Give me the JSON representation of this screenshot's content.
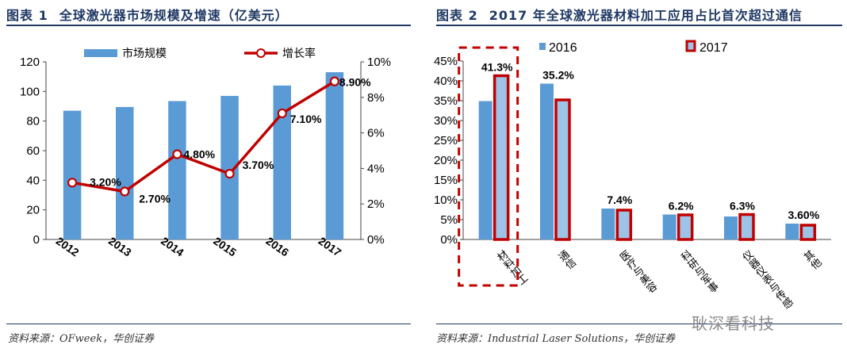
{
  "left": {
    "title_label": "图表 1",
    "title_text": "全球激光器市场规模及增速（亿美元）",
    "source": "资料来源：OFweek，华创证券"
  },
  "right": {
    "title_label": "图表 2",
    "title_text": "2017 年全球激光器材料加工应用占比首次超过通信",
    "source": "资料来源：Industrial Laser Solutions，华创证券"
  },
  "watermark": "耿深看科技",
  "chart_data": [
    {
      "type": "bar",
      "title": "全球激光器市场规模及增速（亿美元）",
      "categories": [
        "2012",
        "2013",
        "2014",
        "2015",
        "2016",
        "2017"
      ],
      "series": [
        {
          "name": "市场规模",
          "type": "bar",
          "axis": "left",
          "values": [
            87,
            89.5,
            93.5,
            97,
            104,
            113
          ],
          "color": "#5b9bd5"
        },
        {
          "name": "增长率",
          "type": "line",
          "axis": "right",
          "values": [
            3.2,
            2.7,
            4.8,
            3.7,
            7.1,
            8.9
          ],
          "labels": [
            "3.20%",
            "2.70%",
            "4.80%",
            "3.70%",
            "7.10%",
            "8.90%"
          ],
          "color": "#c00000"
        }
      ],
      "yleft": {
        "range": [
          0,
          120
        ],
        "ticks": [
          "0",
          "20",
          "40",
          "60",
          "80",
          "100",
          "120"
        ]
      },
      "yright": {
        "range": [
          0,
          10
        ],
        "ticks": [
          "0%",
          "2%",
          "4%",
          "6%",
          "8%",
          "10%"
        ]
      },
      "legend": "top"
    },
    {
      "type": "bar",
      "title": "2017 年全球激光器材料加工应用占比首次超过通信",
      "categories": [
        "材料加工",
        "通信",
        "医疗与美容",
        "科研与军事",
        "仪器仪表与传感",
        "其他"
      ],
      "series": [
        {
          "name": "2016",
          "values": [
            34.9,
            39.3,
            7.8,
            6.3,
            5.8,
            4.0
          ],
          "color": "#5b9bd5"
        },
        {
          "name": "2017",
          "values": [
            41.3,
            35.2,
            7.4,
            6.2,
            6.3,
            3.6
          ],
          "labels": [
            "41.3%",
            "35.2%",
            "7.4%",
            "6.2%",
            "6.3%",
            "3.60%"
          ],
          "color": "#9dc3e6",
          "border": "#c00000"
        }
      ],
      "y": {
        "range": [
          0,
          45
        ],
        "ticks": [
          "0%",
          "5%",
          "10%",
          "15%",
          "20%",
          "25%",
          "30%",
          "35%",
          "40%",
          "45%"
        ]
      },
      "highlight_category": "材料加工",
      "legend": "top"
    }
  ]
}
